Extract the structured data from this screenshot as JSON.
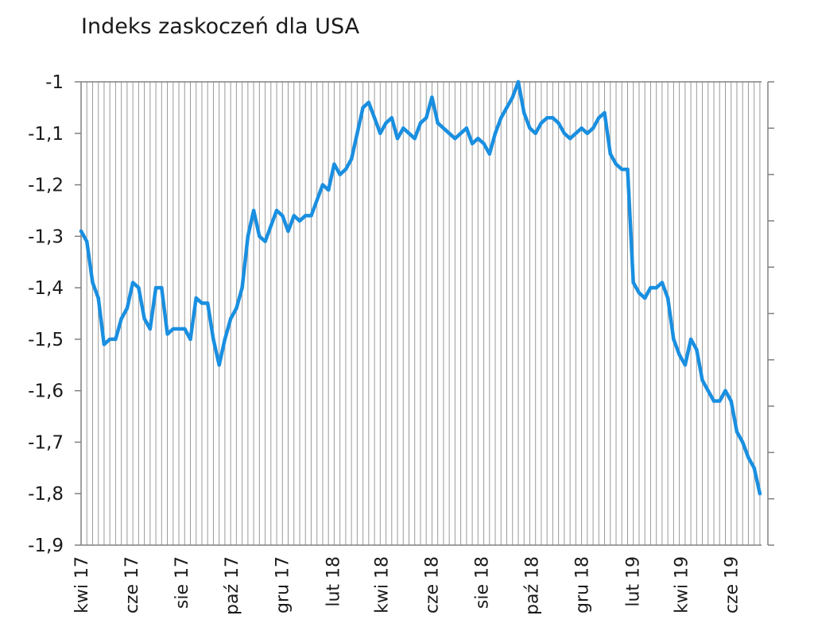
{
  "chart_data": {
    "type": "line",
    "title": "Indeks zaskoczeń dla USA",
    "xlabel": "",
    "ylabel": "",
    "ylim": [
      -1.9,
      -1.0
    ],
    "y_ticks": [
      "-1",
      "-1,1",
      "-1,2",
      "-1,3",
      "-1,4",
      "-1,5",
      "-1,6",
      "-1,7",
      "-1,8",
      "-1,9"
    ],
    "x_tick_labels": [
      "kwi 17",
      "cze 17",
      "sie 17",
      "paź 17",
      "gru 17",
      "lut 18",
      "kwi 18",
      "cze 18",
      "sie 18",
      "paź 18",
      "gru 18",
      "lut 19",
      "kwi 19",
      "cze 19"
    ],
    "x_range": [
      "2017-04-01",
      "2019-07-08"
    ],
    "grid": "vertical",
    "line_color": "#1a8fe0",
    "series": [
      {
        "x": [
          "2017-04-01",
          "2017-04-08",
          "2017-04-15",
          "2017-04-22",
          "2017-04-29",
          "2017-05-06",
          "2017-05-13",
          "2017-05-20",
          "2017-05-27",
          "2017-06-03",
          "2017-06-10",
          "2017-06-17",
          "2017-06-24",
          "2017-07-01",
          "2017-07-08",
          "2017-07-15",
          "2017-07-22",
          "2017-07-29",
          "2017-08-05",
          "2017-08-12",
          "2017-08-19",
          "2017-08-26",
          "2017-09-02",
          "2017-09-09",
          "2017-09-16",
          "2017-09-23",
          "2017-09-30",
          "2017-10-07",
          "2017-10-14",
          "2017-10-21",
          "2017-10-28",
          "2017-11-04",
          "2017-11-11",
          "2017-11-18",
          "2017-11-25",
          "2017-12-02",
          "2017-12-09",
          "2017-12-16",
          "2017-12-23",
          "2017-12-30",
          "2018-01-06",
          "2018-01-13",
          "2018-01-20",
          "2018-01-27",
          "2018-02-03",
          "2018-02-10",
          "2018-02-17",
          "2018-02-24",
          "2018-03-03",
          "2018-03-10",
          "2018-03-17",
          "2018-03-24",
          "2018-03-31",
          "2018-04-07",
          "2018-04-14",
          "2018-04-21",
          "2018-04-28",
          "2018-05-05",
          "2018-05-12",
          "2018-05-19",
          "2018-05-26",
          "2018-06-02",
          "2018-06-09",
          "2018-06-16",
          "2018-06-23",
          "2018-06-30",
          "2018-07-07",
          "2018-07-14",
          "2018-07-21",
          "2018-07-28",
          "2018-08-04",
          "2018-08-11",
          "2018-08-18",
          "2018-08-25",
          "2018-09-01",
          "2018-09-08",
          "2018-09-15",
          "2018-09-22",
          "2018-09-29",
          "2018-10-06",
          "2018-10-13",
          "2018-10-20",
          "2018-10-27",
          "2018-11-03",
          "2018-11-10",
          "2018-11-17",
          "2018-11-24",
          "2018-12-01",
          "2018-12-08",
          "2018-12-15",
          "2018-12-22",
          "2018-12-29",
          "2019-01-05",
          "2019-01-12",
          "2019-01-19",
          "2019-01-26",
          "2019-02-02",
          "2019-02-09",
          "2019-02-16",
          "2019-02-23",
          "2019-03-02",
          "2019-03-09",
          "2019-03-16",
          "2019-03-23",
          "2019-03-30",
          "2019-04-06",
          "2019-04-13",
          "2019-04-20",
          "2019-04-27",
          "2019-05-04",
          "2019-05-11",
          "2019-05-18",
          "2019-05-25",
          "2019-06-01",
          "2019-06-08",
          "2019-06-15",
          "2019-06-22",
          "2019-06-29",
          "2019-07-06"
        ],
        "values": [
          -1.29,
          -1.31,
          -1.39,
          -1.42,
          -1.51,
          -1.5,
          -1.5,
          -1.46,
          -1.44,
          -1.39,
          -1.4,
          -1.46,
          -1.48,
          -1.4,
          -1.4,
          -1.49,
          -1.48,
          -1.48,
          -1.48,
          -1.5,
          -1.42,
          -1.43,
          -1.43,
          -1.5,
          -1.55,
          -1.5,
          -1.46,
          -1.44,
          -1.4,
          -1.3,
          -1.25,
          -1.3,
          -1.31,
          -1.28,
          -1.25,
          -1.26,
          -1.29,
          -1.26,
          -1.27,
          -1.26,
          -1.26,
          -1.23,
          -1.2,
          -1.21,
          -1.16,
          -1.18,
          -1.17,
          -1.15,
          -1.1,
          -1.05,
          -1.04,
          -1.07,
          -1.1,
          -1.08,
          -1.07,
          -1.11,
          -1.09,
          -1.1,
          -1.11,
          -1.08,
          -1.07,
          -1.03,
          -1.08,
          -1.09,
          -1.1,
          -1.11,
          -1.1,
          -1.09,
          -1.12,
          -1.11,
          -1.12,
          -1.14,
          -1.1,
          -1.07,
          -1.05,
          -1.03,
          -1.0,
          -1.06,
          -1.09,
          -1.1,
          -1.08,
          -1.07,
          -1.07,
          -1.08,
          -1.1,
          -1.11,
          -1.1,
          -1.09,
          -1.1,
          -1.09,
          -1.07,
          -1.06,
          -1.14,
          -1.16,
          -1.17,
          -1.17,
          -1.39,
          -1.41,
          -1.42,
          -1.4,
          -1.4,
          -1.39,
          -1.42,
          -1.5,
          -1.53,
          -1.55,
          -1.5,
          -1.52,
          -1.58,
          -1.6,
          -1.62,
          -1.62,
          -1.6,
          -1.62,
          -1.68,
          -1.7,
          -1.73,
          -1.75,
          -1.8
        ]
      }
    ]
  }
}
